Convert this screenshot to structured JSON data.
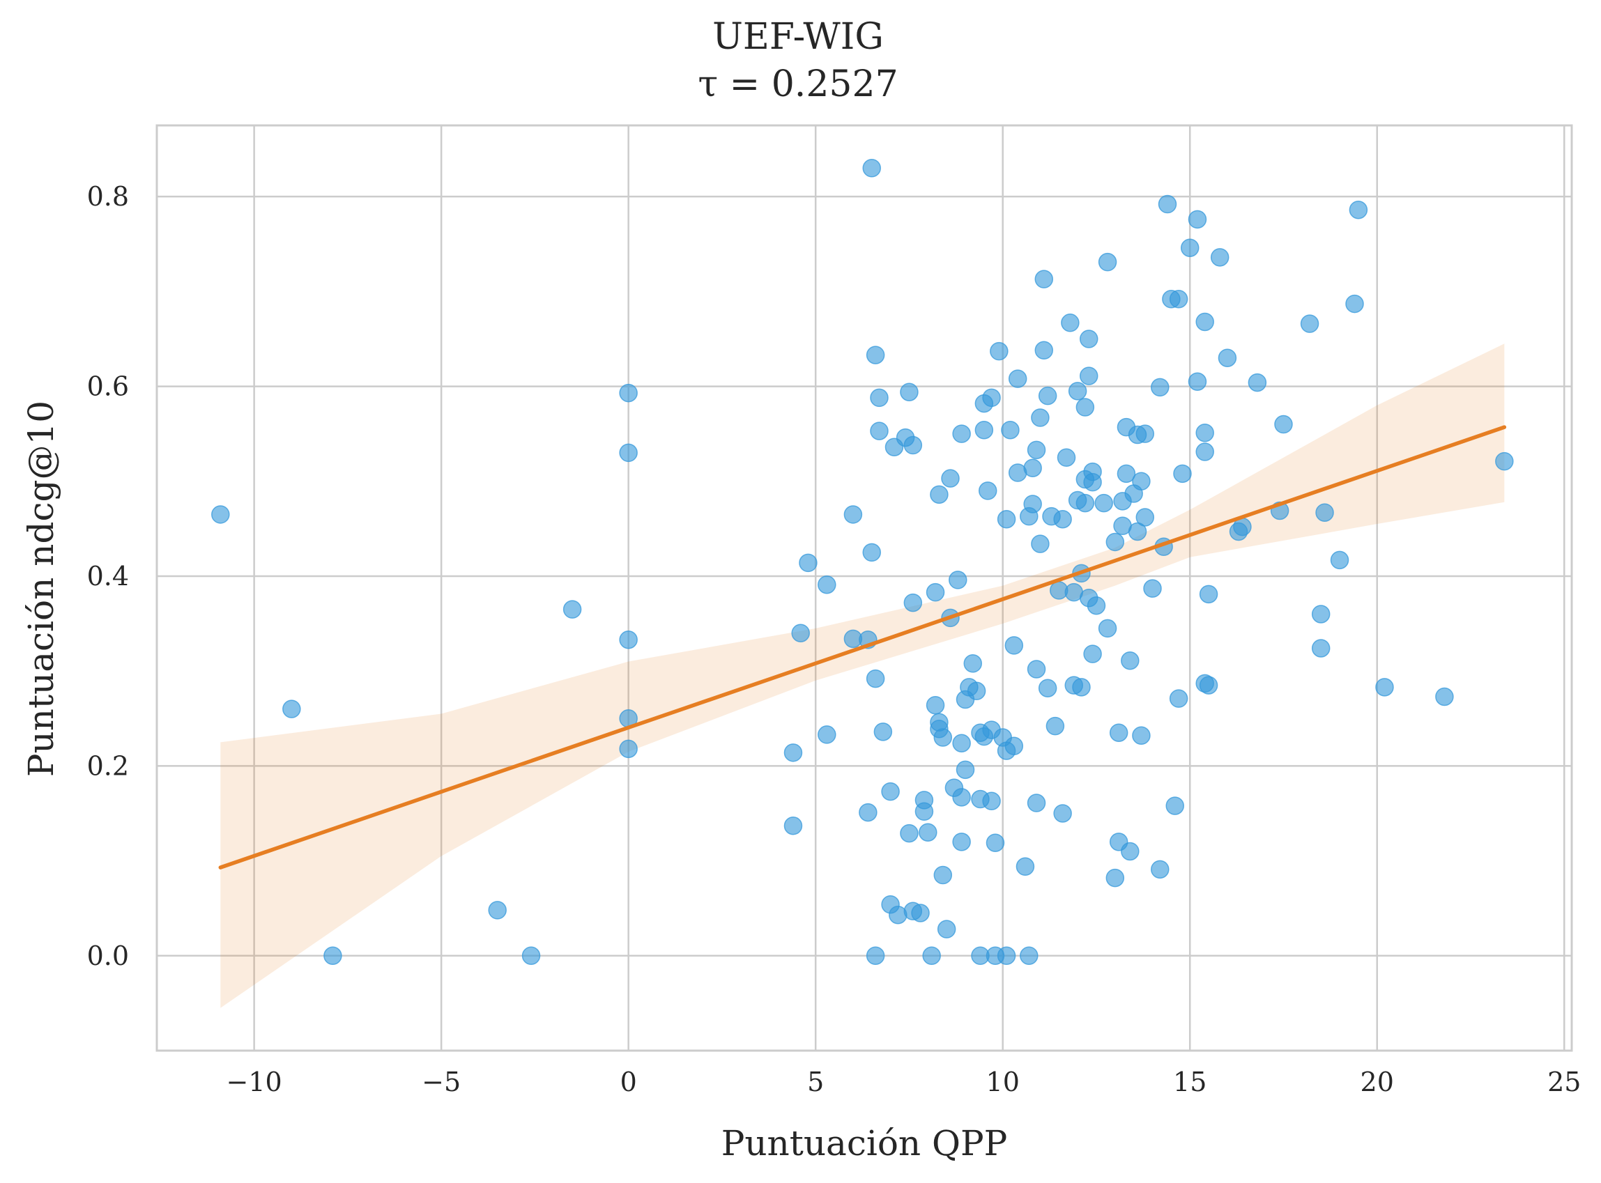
{
  "chart_data": {
    "type": "scatter",
    "title": "UEF-WIG",
    "subtitle": "τ = 0.2527",
    "xlabel": "Puntuación QPP",
    "ylabel": "Puntuación ndcg@10",
    "xlim": [
      -12.6,
      25.2
    ],
    "ylim": [
      -0.1,
      0.875
    ],
    "xticks": [
      -10,
      -5,
      0,
      5,
      10,
      15,
      20,
      25
    ],
    "xtick_labels": [
      "−10",
      "−5",
      "0",
      "5",
      "10",
      "15",
      "20",
      "25"
    ],
    "yticks": [
      0.0,
      0.2,
      0.4,
      0.6,
      0.8
    ],
    "ytick_labels": [
      "0.0",
      "0.2",
      "0.4",
      "0.6",
      "0.8"
    ],
    "grid": true,
    "colors": {
      "points": "#3498db",
      "line": "#e67e22",
      "band": "#e67e22"
    },
    "regression": {
      "x_range": [
        -10.9,
        23.4
      ],
      "y_at_ends": [
        0.093,
        0.557
      ],
      "ci_x": [
        -10.9,
        -5,
        0,
        5,
        10,
        13,
        15,
        20,
        23.4
      ],
      "ci_lower": [
        -0.055,
        0.105,
        0.215,
        0.29,
        0.35,
        0.39,
        0.42,
        0.455,
        0.478
      ],
      "ci_upper": [
        0.225,
        0.255,
        0.31,
        0.345,
        0.39,
        0.43,
        0.47,
        0.58,
        0.645
      ]
    },
    "points": [
      [
        -10.9,
        0.465
      ],
      [
        -9.0,
        0.26
      ],
      [
        -7.9,
        0.0
      ],
      [
        -3.5,
        0.048
      ],
      [
        -2.6,
        0.0
      ],
      [
        -1.5,
        0.365
      ],
      [
        0.0,
        0.593
      ],
      [
        0.0,
        0.53
      ],
      [
        0.0,
        0.333
      ],
      [
        0.0,
        0.25
      ],
      [
        0.0,
        0.218
      ],
      [
        4.4,
        0.214
      ],
      [
        4.4,
        0.137
      ],
      [
        4.6,
        0.34
      ],
      [
        4.8,
        0.414
      ],
      [
        5.3,
        0.391
      ],
      [
        5.3,
        0.233
      ],
      [
        6.0,
        0.465
      ],
      [
        6.0,
        0.334
      ],
      [
        6.4,
        0.333
      ],
      [
        6.4,
        0.151
      ],
      [
        6.5,
        0.83
      ],
      [
        6.5,
        0.425
      ],
      [
        6.6,
        0.633
      ],
      [
        6.6,
        0.292
      ],
      [
        6.6,
        0.0
      ],
      [
        6.7,
        0.588
      ],
      [
        6.7,
        0.553
      ],
      [
        6.8,
        0.236
      ],
      [
        7.0,
        0.173
      ],
      [
        7.0,
        0.054
      ],
      [
        7.1,
        0.536
      ],
      [
        7.2,
        0.043
      ],
      [
        7.4,
        0.546
      ],
      [
        7.5,
        0.129
      ],
      [
        7.5,
        0.594
      ],
      [
        7.6,
        0.538
      ],
      [
        7.6,
        0.372
      ],
      [
        7.6,
        0.047
      ],
      [
        7.8,
        0.045
      ],
      [
        7.9,
        0.152
      ],
      [
        7.9,
        0.164
      ],
      [
        8.0,
        0.13
      ],
      [
        8.1,
        0.0
      ],
      [
        8.2,
        0.383
      ],
      [
        8.2,
        0.264
      ],
      [
        8.3,
        0.486
      ],
      [
        8.3,
        0.246
      ],
      [
        8.3,
        0.239
      ],
      [
        8.4,
        0.23
      ],
      [
        8.4,
        0.085
      ],
      [
        8.5,
        0.028
      ],
      [
        8.6,
        0.503
      ],
      [
        8.6,
        0.356
      ],
      [
        8.7,
        0.177
      ],
      [
        8.8,
        0.396
      ],
      [
        8.9,
        0.55
      ],
      [
        8.9,
        0.224
      ],
      [
        8.9,
        0.167
      ],
      [
        8.9,
        0.12
      ],
      [
        9.0,
        0.27
      ],
      [
        9.0,
        0.196
      ],
      [
        9.1,
        0.283
      ],
      [
        9.2,
        0.308
      ],
      [
        9.3,
        0.279
      ],
      [
        9.4,
        0.235
      ],
      [
        9.4,
        0.165
      ],
      [
        9.4,
        0.0
      ],
      [
        9.5,
        0.582
      ],
      [
        9.5,
        0.554
      ],
      [
        9.5,
        0.231
      ],
      [
        9.6,
        0.49
      ],
      [
        9.7,
        0.588
      ],
      [
        9.7,
        0.238
      ],
      [
        9.7,
        0.163
      ],
      [
        9.8,
        0.119
      ],
      [
        9.8,
        0.0
      ],
      [
        9.9,
        0.637
      ],
      [
        10.0,
        0.23
      ],
      [
        10.1,
        0.46
      ],
      [
        10.1,
        0.216
      ],
      [
        10.1,
        0.0
      ],
      [
        10.2,
        0.554
      ],
      [
        10.3,
        0.327
      ],
      [
        10.3,
        0.221
      ],
      [
        10.4,
        0.509
      ],
      [
        10.4,
        0.608
      ],
      [
        10.6,
        0.094
      ],
      [
        10.7,
        0.463
      ],
      [
        10.7,
        0.0
      ],
      [
        10.8,
        0.514
      ],
      [
        10.8,
        0.476
      ],
      [
        10.9,
        0.533
      ],
      [
        10.9,
        0.302
      ],
      [
        10.9,
        0.161
      ],
      [
        11.0,
        0.434
      ],
      [
        11.0,
        0.567
      ],
      [
        11.1,
        0.713
      ],
      [
        11.1,
        0.638
      ],
      [
        11.2,
        0.59
      ],
      [
        11.2,
        0.282
      ],
      [
        11.3,
        0.463
      ],
      [
        11.4,
        0.242
      ],
      [
        11.5,
        0.385
      ],
      [
        11.6,
        0.46
      ],
      [
        11.6,
        0.15
      ],
      [
        11.7,
        0.525
      ],
      [
        11.8,
        0.667
      ],
      [
        11.9,
        0.285
      ],
      [
        11.9,
        0.383
      ],
      [
        12.0,
        0.48
      ],
      [
        12.0,
        0.595
      ],
      [
        12.1,
        0.403
      ],
      [
        12.1,
        0.283
      ],
      [
        12.2,
        0.578
      ],
      [
        12.2,
        0.502
      ],
      [
        12.2,
        0.477
      ],
      [
        12.3,
        0.377
      ],
      [
        12.3,
        0.65
      ],
      [
        12.3,
        0.611
      ],
      [
        12.4,
        0.499
      ],
      [
        12.4,
        0.51
      ],
      [
        12.4,
        0.318
      ],
      [
        12.5,
        0.369
      ],
      [
        12.7,
        0.477
      ],
      [
        12.8,
        0.345
      ],
      [
        12.8,
        0.731
      ],
      [
        13.0,
        0.436
      ],
      [
        13.0,
        0.082
      ],
      [
        13.1,
        0.235
      ],
      [
        13.1,
        0.12
      ],
      [
        13.2,
        0.479
      ],
      [
        13.2,
        0.453
      ],
      [
        13.3,
        0.557
      ],
      [
        13.3,
        0.508
      ],
      [
        13.4,
        0.311
      ],
      [
        13.4,
        0.11
      ],
      [
        13.5,
        0.487
      ],
      [
        13.6,
        0.447
      ],
      [
        13.6,
        0.549
      ],
      [
        13.7,
        0.5
      ],
      [
        13.7,
        0.232
      ],
      [
        13.8,
        0.55
      ],
      [
        13.8,
        0.462
      ],
      [
        14.0,
        0.387
      ],
      [
        14.2,
        0.599
      ],
      [
        14.2,
        0.091
      ],
      [
        14.3,
        0.431
      ],
      [
        14.4,
        0.792
      ],
      [
        14.5,
        0.692
      ],
      [
        14.6,
        0.158
      ],
      [
        14.7,
        0.692
      ],
      [
        14.7,
        0.271
      ],
      [
        14.8,
        0.508
      ],
      [
        15.0,
        0.746
      ],
      [
        15.2,
        0.776
      ],
      [
        15.2,
        0.605
      ],
      [
        15.4,
        0.668
      ],
      [
        15.4,
        0.551
      ],
      [
        15.4,
        0.531
      ],
      [
        15.4,
        0.287
      ],
      [
        15.5,
        0.285
      ],
      [
        15.5,
        0.381
      ],
      [
        15.8,
        0.736
      ],
      [
        16.0,
        0.63
      ],
      [
        16.3,
        0.447
      ],
      [
        16.4,
        0.452
      ],
      [
        16.8,
        0.604
      ],
      [
        17.4,
        0.469
      ],
      [
        17.5,
        0.56
      ],
      [
        18.2,
        0.666
      ],
      [
        18.5,
        0.36
      ],
      [
        18.5,
        0.324
      ],
      [
        18.6,
        0.467
      ],
      [
        19.0,
        0.417
      ],
      [
        19.4,
        0.687
      ],
      [
        19.5,
        0.786
      ],
      [
        20.2,
        0.283
      ],
      [
        21.8,
        0.273
      ],
      [
        23.4,
        0.521
      ]
    ]
  }
}
